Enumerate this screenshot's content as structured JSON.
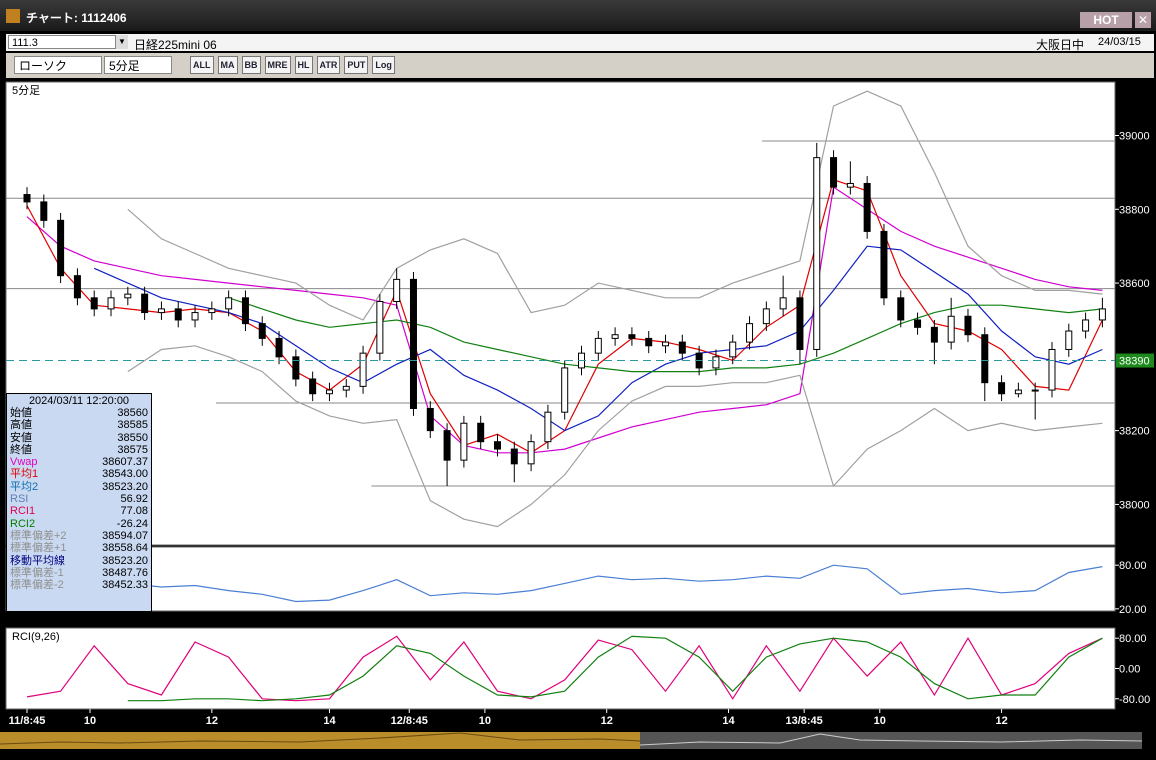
{
  "window": {
    "title": "チャート: 1112406",
    "hot": "HOT",
    "code": "111.3",
    "instrument": "日経225mini 06",
    "session": "大阪日中",
    "date": "24/03/15",
    "chart_style": "ローソク",
    "period": "5分足",
    "tools": [
      "ALL",
      "MA",
      "BB",
      "MRE",
      "HL",
      "ATR",
      "PUT",
      "Log"
    ]
  },
  "info_panel": {
    "datetime": "2024/03/11 12:20:00",
    "rows": [
      {
        "label": "始値",
        "value": "38560",
        "color": "#000000"
      },
      {
        "label": "高値",
        "value": "38585",
        "color": "#000000"
      },
      {
        "label": "安値",
        "value": "38550",
        "color": "#000000"
      },
      {
        "label": "終値",
        "value": "38575",
        "color": "#000000"
      },
      {
        "label": "Vwap",
        "value": "38607.37",
        "color": "#e000c0"
      },
      {
        "label": "平均1",
        "value": "38543.00",
        "color": "#e00000"
      },
      {
        "label": "平均2",
        "value": "38523.20",
        "color": "#1070b0"
      },
      {
        "label": "RSI",
        "value": "56.92",
        "color": "#6080b0"
      },
      {
        "label": "RCI1",
        "value": "77.08",
        "color": "#e00050"
      },
      {
        "label": "RCI2",
        "value": "-26.24",
        "color": "#008000"
      },
      {
        "label": "標準偏差+2",
        "value": "38594.07",
        "color": "#909090"
      },
      {
        "label": "標準偏差+1",
        "value": "38558.64",
        "color": "#909090"
      },
      {
        "label": "移動平均線",
        "value": "38523.20",
        "color": "#000080"
      },
      {
        "label": "標準偏差-1",
        "value": "38487.76",
        "color": "#909090"
      },
      {
        "label": "標準偏差-2",
        "value": "38452.33",
        "color": "#909090"
      }
    ]
  },
  "chart_data": [
    {
      "type": "candlestick",
      "title": "5分足",
      "xlim": [
        -5,
        259
      ],
      "ylim": [
        37890,
        39145
      ],
      "yticks": [
        38000,
        38200,
        38600,
        38800,
        39000
      ],
      "x": [
        0,
        4,
        8,
        12,
        16,
        20,
        24,
        28,
        32,
        36,
        40,
        44,
        48,
        52,
        56,
        60,
        64,
        68,
        72,
        76,
        80,
        84,
        88,
        92,
        96,
        100,
        104,
        108,
        112,
        116,
        120,
        124,
        128,
        132,
        136,
        140,
        144,
        148,
        152,
        156,
        160,
        164,
        168,
        172,
        176,
        180,
        184,
        188,
        192,
        196,
        200,
        204,
        208,
        212,
        216,
        220,
        224,
        228,
        232,
        236,
        240,
        244,
        248,
        252,
        256
      ],
      "open": [
        38840,
        38820,
        38770,
        38620,
        38560,
        38530,
        38560,
        38570,
        38520,
        38530,
        38500,
        38520,
        38530,
        38560,
        38490,
        38450,
        38400,
        38340,
        38300,
        38310,
        38320,
        38410,
        38550,
        38610,
        38260,
        38200,
        38120,
        38220,
        38170,
        38150,
        38110,
        38170,
        38250,
        38370,
        38410,
        38450,
        38460,
        38450,
        38430,
        38440,
        38410,
        38370,
        38400,
        38440,
        38490,
        38530,
        38560,
        38420,
        38940,
        38860,
        38870,
        38740,
        38560,
        38500,
        38480,
        38440,
        38510,
        38460,
        38330,
        38300,
        38310,
        38310,
        38420,
        38470,
        38500
      ],
      "high": [
        38860,
        38840,
        38790,
        38640,
        38580,
        38580,
        38590,
        38590,
        38550,
        38550,
        38540,
        38550,
        38580,
        38580,
        38510,
        38470,
        38420,
        38360,
        38330,
        38340,
        38430,
        38570,
        38640,
        38630,
        38280,
        38220,
        38240,
        38240,
        38190,
        38170,
        38190,
        38270,
        38390,
        38430,
        38470,
        38480,
        38480,
        38470,
        38460,
        38460,
        38430,
        38420,
        38460,
        38510,
        38550,
        38620,
        38580,
        38980,
        38960,
        38930,
        38890,
        38760,
        38580,
        38520,
        38500,
        38560,
        38530,
        38480,
        38350,
        38330,
        38330,
        38440,
        38490,
        38520,
        38560
      ],
      "low": [
        38800,
        38750,
        38600,
        38540,
        38510,
        38510,
        38540,
        38500,
        38500,
        38480,
        38480,
        38500,
        38510,
        38470,
        38430,
        38380,
        38320,
        38280,
        38280,
        38290,
        38300,
        38390,
        38530,
        38240,
        38180,
        38050,
        38100,
        38150,
        38130,
        38060,
        38090,
        38150,
        38230,
        38350,
        38390,
        38430,
        38430,
        38410,
        38410,
        38390,
        38350,
        38350,
        38380,
        38420,
        38470,
        38510,
        38380,
        38400,
        38840,
        38840,
        38720,
        38540,
        38480,
        38460,
        38380,
        38420,
        38440,
        38280,
        38280,
        38290,
        38230,
        38290,
        38400,
        38450,
        38480
      ],
      "close": [
        38820,
        38770,
        38620,
        38560,
        38530,
        38560,
        38570,
        38520,
        38530,
        38500,
        38520,
        38530,
        38560,
        38490,
        38450,
        38400,
        38340,
        38300,
        38310,
        38320,
        38410,
        38550,
        38610,
        38260,
        38200,
        38120,
        38220,
        38170,
        38150,
        38110,
        38170,
        38250,
        38370,
        38410,
        38450,
        38460,
        38450,
        38430,
        38440,
        38410,
        38370,
        38400,
        38440,
        38490,
        38530,
        38560,
        38420,
        38940,
        38860,
        38870,
        38740,
        38560,
        38500,
        38480,
        38440,
        38510,
        38460,
        38330,
        38300,
        38310,
        38310,
        38420,
        38470,
        38500,
        38530
      ],
      "line_x": [
        0,
        8,
        16,
        24,
        32,
        40,
        48,
        56,
        64,
        72,
        80,
        88,
        96,
        104,
        112,
        120,
        128,
        136,
        144,
        152,
        160,
        168,
        176,
        184,
        192,
        200,
        208,
        216,
        224,
        232,
        240,
        248,
        256
      ],
      "lines": [
        {
          "color": "#d000d0",
          "values": [
            38780,
            38700,
            38660,
            38640,
            38620,
            38610,
            38600,
            38590,
            38580,
            38570,
            38560,
            38540,
            38240,
            38160,
            38140,
            38140,
            38150,
            38180,
            38210,
            38230,
            38250,
            38260,
            38270,
            38300,
            38860,
            38800,
            38740,
            38700,
            38670,
            38640,
            38610,
            38590,
            38580
          ]
        },
        {
          "color": "#e00000",
          "values": [
            38810,
            38640,
            38540,
            38530,
            38520,
            38530,
            38520,
            38470,
            38360,
            38310,
            38380,
            38580,
            38300,
            38160,
            38190,
            38140,
            38200,
            38380,
            38450,
            38440,
            38420,
            38390,
            38480,
            38540,
            38880,
            38850,
            38620,
            38490,
            38470,
            38420,
            38320,
            38310,
            38500
          ]
        },
        {
          "color": "#1020c0",
          "values": [
            null,
            null,
            38640,
            38600,
            38560,
            38540,
            38520,
            38490,
            38430,
            38370,
            38330,
            38380,
            38420,
            38350,
            38310,
            38260,
            38200,
            38240,
            38330,
            38380,
            38410,
            38420,
            38430,
            38470,
            38580,
            38700,
            38690,
            38630,
            38570,
            38470,
            38400,
            38380,
            38420
          ]
        },
        {
          "color": "#108010",
          "values": [
            null,
            null,
            null,
            null,
            null,
            null,
            38560,
            38530,
            38500,
            38480,
            38490,
            38500,
            38480,
            38440,
            38420,
            38400,
            38380,
            38370,
            38360,
            38360,
            38360,
            38370,
            38370,
            38380,
            38410,
            38450,
            38490,
            38520,
            38540,
            38540,
            38530,
            38520,
            38530
          ]
        },
        {
          "color": "#a0a0a0",
          "values": [
            null,
            null,
            null,
            38800,
            38720,
            38680,
            38640,
            38620,
            38600,
            38540,
            38500,
            38640,
            38690,
            38720,
            38680,
            38520,
            38540,
            38600,
            38580,
            38560,
            38560,
            38600,
            38630,
            38660,
            39080,
            39120,
            39080,
            38900,
            38700,
            38620,
            38580,
            38580,
            38570
          ]
        },
        {
          "color": "#a0a0a0",
          "values": [
            null,
            null,
            null,
            38360,
            38420,
            38430,
            38400,
            38360,
            38280,
            38240,
            38220,
            38230,
            38010,
            37960,
            37940,
            38000,
            38080,
            38200,
            38280,
            38320,
            38320,
            38330,
            38330,
            38350,
            38050,
            38150,
            38200,
            38260,
            38200,
            38220,
            38200,
            38210,
            38220
          ]
        }
      ],
      "levels": [
        {
          "price": 38830,
          "from": -5
        },
        {
          "price": 38585,
          "from": -5
        },
        {
          "price": 38275,
          "from": 45
        },
        {
          "price": 38050,
          "from": 82
        },
        {
          "price": 38985,
          "from": 175
        }
      ],
      "current_price": 38390
    },
    {
      "type": "line",
      "xlim": [
        -5,
        259
      ],
      "ylim": [
        17,
        105
      ],
      "yticks": [
        {
          "value": 80,
          "label": "80.00"
        },
        {
          "value": 20,
          "label": "20.00"
        }
      ],
      "x": [
        0,
        8,
        16,
        24,
        32,
        40,
        48,
        56,
        64,
        72,
        80,
        88,
        96,
        104,
        112,
        120,
        128,
        136,
        144,
        152,
        160,
        168,
        176,
        184,
        192,
        200,
        208,
        216,
        224,
        232,
        240,
        248,
        256
      ],
      "series": [
        {
          "color": "#4a7fd4",
          "values": [
            55,
            45,
            50,
            55,
            50,
            52,
            45,
            40,
            30,
            32,
            45,
            60,
            38,
            42,
            40,
            45,
            55,
            65,
            60,
            62,
            58,
            60,
            65,
            62,
            80,
            75,
            40,
            45,
            48,
            42,
            45,
            70,
            78
          ]
        }
      ]
    },
    {
      "type": "line",
      "title": "RCI(9,26)",
      "xlim": [
        -5,
        259
      ],
      "ylim": [
        -107,
        107
      ],
      "yticks": [
        {
          "value": 80,
          "label": "80.00"
        },
        {
          "value": 0,
          "label": "0.00"
        },
        {
          "value": -80,
          "label": "-80.00"
        }
      ],
      "xticks": [
        {
          "value": 0,
          "label": "11/8:45"
        },
        {
          "value": 15,
          "label": "10"
        },
        {
          "value": 44,
          "label": "12"
        },
        {
          "value": 72,
          "label": "14"
        },
        {
          "value": 91,
          "label": "12/8:45"
        },
        {
          "value": 109,
          "label": "10"
        },
        {
          "value": 138,
          "label": "12"
        },
        {
          "value": 167,
          "label": "14"
        },
        {
          "value": 185,
          "label": "13/8:45"
        },
        {
          "value": 203,
          "label": "10"
        },
        {
          "value": 232,
          "label": "12"
        }
      ],
      "x": [
        0,
        8,
        16,
        24,
        32,
        40,
        48,
        56,
        64,
        72,
        80,
        88,
        96,
        104,
        112,
        120,
        128,
        136,
        144,
        152,
        160,
        168,
        176,
        184,
        192,
        200,
        208,
        216,
        224,
        232,
        240,
        248,
        256
      ],
      "series": [
        {
          "color": "#e0007a",
          "values": [
            -75,
            -60,
            60,
            -40,
            -70,
            70,
            30,
            -80,
            -85,
            -80,
            30,
            85,
            -30,
            70,
            -60,
            -80,
            -30,
            75,
            50,
            -60,
            60,
            -80,
            60,
            -60,
            80,
            -20,
            70,
            -70,
            80,
            -70,
            -40,
            40,
            80
          ]
        },
        {
          "color": "#108010",
          "values": [
            null,
            null,
            null,
            -85,
            -85,
            -80,
            -80,
            -85,
            -80,
            -70,
            -20,
            60,
            40,
            -20,
            -70,
            -75,
            -60,
            30,
            85,
            80,
            30,
            -60,
            30,
            65,
            80,
            70,
            30,
            -40,
            -80,
            -70,
            -70,
            30,
            80
          ]
        }
      ]
    }
  ]
}
